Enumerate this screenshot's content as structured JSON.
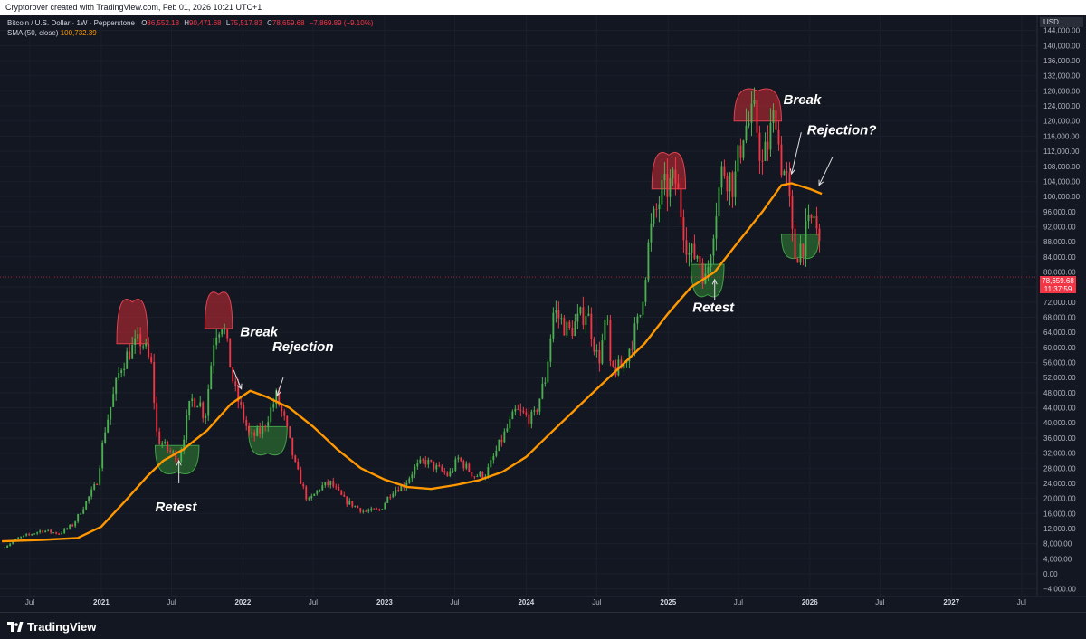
{
  "header": {
    "attribution": "Cryptorover created with TradingView.com, Feb 01, 2026 10:21 UTC+1"
  },
  "legend": {
    "symbol": "Bitcoin / U.S. Dollar · 1W · Pepperstone",
    "open_label": "O",
    "open": "86,552.18",
    "high_label": "H",
    "high": "90,471.68",
    "low_label": "L",
    "low": "75,517.83",
    "close_label": "C",
    "close": "78,659.68",
    "change": "−7,869.89 (−9.10%)",
    "sma_label": "SMA (50, close)",
    "sma_value": "100,732.39"
  },
  "price_axis": {
    "currency": "USD",
    "last_price": "78,659.68",
    "countdown": "11:37:59"
  },
  "footer": {
    "brand": "TradingView"
  },
  "colors": {
    "background": "#131722",
    "up": "#4caf50",
    "down": "#f23645",
    "sma": "#ff9800",
    "top_zone": "#b22833",
    "bottom_zone": "#2e7d32"
  },
  "chart_data": {
    "type": "candlestick",
    "x_ticks": [
      "Jul",
      "2021",
      "Jul",
      "2022",
      "Jul",
      "2023",
      "Jul",
      "2024",
      "Jul",
      "2025",
      "Jul",
      "2026",
      "Jul",
      "2027",
      "Jul"
    ],
    "x_tick_dates": [
      "2020-07-01",
      "2021-01-01",
      "2021-07-01",
      "2022-01-01",
      "2022-07-01",
      "2023-01-01",
      "2023-07-01",
      "2024-01-01",
      "2024-07-01",
      "2025-01-01",
      "2025-07-01",
      "2026-01-01",
      "2026-07-01",
      "2027-01-01",
      "2027-07-01"
    ],
    "y_ticks": [
      144000,
      140000,
      136000,
      132000,
      128000,
      124000,
      120000,
      116000,
      112000,
      108000,
      104000,
      100000,
      96000,
      92000,
      88000,
      84000,
      80000,
      76000,
      72000,
      68000,
      64000,
      60000,
      56000,
      52000,
      48000,
      44000,
      40000,
      36000,
      32000,
      28000,
      24000,
      20000,
      16000,
      12000,
      8000,
      4000,
      0,
      -4000
    ],
    "y_tick_labels": [
      "144,000.00",
      "140,000.00",
      "136,000.00",
      "132,000.00",
      "128,000.00",
      "124,000.00",
      "120,000.00",
      "116,000.00",
      "112,000.00",
      "108,000.00",
      "104,000.00",
      "100,000.00",
      "96,000.00",
      "92,000.00",
      "88,000.00",
      "84,000.00",
      "80,000.00",
      "76,000.00",
      "72,000.00",
      "68,000.00",
      "64,000.00",
      "60,000.00",
      "56,000.00",
      "52,000.00",
      "48,000.00",
      "44,000.00",
      "40,000.00",
      "36,000.00",
      "32,000.00",
      "28,000.00",
      "24,000.00",
      "20,000.00",
      "16,000.00",
      "12,000.00",
      "8,000.00",
      "4,000.00",
      "0.00",
      "−4,000.00"
    ],
    "ylim": [
      -6000,
      148000
    ],
    "x_range": [
      "2020-04-15",
      "2027-08-10"
    ],
    "price_keypoints": [
      [
        "2020-04-20",
        6800
      ],
      [
        "2020-06-01",
        9400
      ],
      [
        "2020-08-01",
        11500
      ],
      [
        "2020-09-15",
        10700
      ],
      [
        "2020-10-20",
        13000
      ],
      [
        "2020-11-20",
        18500
      ],
      [
        "2020-12-20",
        24000
      ],
      [
        "2021-01-10",
        38000
      ],
      [
        "2021-02-20",
        55000
      ],
      [
        "2021-03-15",
        59000
      ],
      [
        "2021-04-15",
        62000
      ],
      [
        "2021-05-10",
        55000
      ],
      [
        "2021-05-25",
        36000
      ],
      [
        "2021-06-20",
        33000
      ],
      [
        "2021-07-20",
        30500
      ],
      [
        "2021-08-20",
        46000
      ],
      [
        "2021-09-10",
        46000
      ],
      [
        "2021-09-25",
        41000
      ],
      [
        "2021-10-20",
        64000
      ],
      [
        "2021-11-10",
        67000
      ],
      [
        "2021-12-10",
        49000
      ],
      [
        "2022-01-20",
        36000
      ],
      [
        "2022-02-20",
        38000
      ],
      [
        "2022-03-28",
        47000
      ],
      [
        "2022-04-20",
        40000
      ],
      [
        "2022-05-15",
        29000
      ],
      [
        "2022-06-18",
        19000
      ],
      [
        "2022-07-20",
        23000
      ],
      [
        "2022-08-15",
        24000
      ],
      [
        "2022-09-20",
        19500
      ],
      [
        "2022-11-10",
        16500
      ],
      [
        "2022-12-20",
        16800
      ],
      [
        "2023-01-20",
        22000
      ],
      [
        "2023-02-20",
        23500
      ],
      [
        "2023-03-20",
        28000
      ],
      [
        "2023-04-15",
        30000
      ],
      [
        "2023-06-15",
        26000
      ],
      [
        "2023-07-10",
        30500
      ],
      [
        "2023-08-20",
        26000
      ],
      [
        "2023-09-20",
        26500
      ],
      [
        "2023-10-25",
        34500
      ],
      [
        "2023-12-05",
        43000
      ],
      [
        "2024-01-20",
        41000
      ],
      [
        "2024-02-20",
        52000
      ],
      [
        "2024-03-12",
        70000
      ],
      [
        "2024-04-20",
        64000
      ],
      [
        "2024-06-05",
        70000
      ],
      [
        "2024-07-05",
        56000
      ],
      [
        "2024-07-28",
        68000
      ],
      [
        "2024-08-05",
        54000
      ],
      [
        "2024-09-05",
        54500
      ],
      [
        "2024-10-20",
        68000
      ],
      [
        "2024-11-15",
        90000
      ],
      [
        "2024-12-15",
        101000
      ],
      [
        "2025-01-20",
        104000
      ],
      [
        "2025-02-25",
        84000
      ],
      [
        "2025-03-20",
        85000
      ],
      [
        "2025-04-08",
        77000
      ],
      [
        "2025-05-01",
        95000
      ],
      [
        "2025-05-22",
        108000
      ],
      [
        "2025-06-20",
        103000
      ],
      [
        "2025-07-14",
        118000
      ],
      [
        "2025-08-14",
        121000
      ],
      [
        "2025-09-01",
        108000
      ],
      [
        "2025-10-06",
        123000
      ],
      [
        "2025-10-15",
        111000
      ],
      [
        "2025-11-05",
        103000
      ],
      [
        "2025-11-21",
        84000
      ],
      [
        "2025-12-15",
        88000
      ],
      [
        "2026-01-12",
        95000
      ],
      [
        "2026-01-26",
        86500
      ],
      [
        "2026-02-01",
        78659.68
      ]
    ],
    "sma_50": {
      "name": "SMA (50, close)",
      "points": [
        [
          "2020-04-20",
          8600
        ],
        [
          "2020-08-01",
          9000
        ],
        [
          "2020-11-01",
          9500
        ],
        [
          "2021-01-01",
          12500
        ],
        [
          "2021-03-01",
          19000
        ],
        [
          "2021-05-01",
          26000
        ],
        [
          "2021-06-10",
          30000
        ],
        [
          "2021-08-01",
          33000
        ],
        [
          "2021-10-01",
          38000
        ],
        [
          "2021-12-01",
          45000
        ],
        [
          "2022-01-20",
          48500
        ],
        [
          "2022-03-01",
          47000
        ],
        [
          "2022-05-01",
          44000
        ],
        [
          "2022-07-01",
          39000
        ],
        [
          "2022-09-01",
          33000
        ],
        [
          "2022-11-01",
          28000
        ],
        [
          "2023-01-01",
          25000
        ],
        [
          "2023-03-01",
          23000
        ],
        [
          "2023-05-01",
          22500
        ],
        [
          "2023-07-01",
          23500
        ],
        [
          "2023-09-01",
          24800
        ],
        [
          "2023-11-01",
          27000
        ],
        [
          "2024-01-01",
          31000
        ],
        [
          "2024-03-01",
          37000
        ],
        [
          "2024-05-01",
          43000
        ],
        [
          "2024-07-01",
          49000
        ],
        [
          "2024-09-01",
          55000
        ],
        [
          "2024-11-01",
          61000
        ],
        [
          "2025-01-01",
          69000
        ],
        [
          "2025-03-01",
          76000
        ],
        [
          "2025-05-01",
          80000
        ],
        [
          "2025-07-01",
          88000
        ],
        [
          "2025-09-01",
          96000
        ],
        [
          "2025-10-20",
          103000
        ],
        [
          "2025-11-15",
          103500
        ],
        [
          "2026-01-01",
          102000
        ],
        [
          "2026-02-01",
          100732.39
        ]
      ]
    },
    "top_zones": [
      {
        "start": "2021-02-10",
        "end": "2021-05-01",
        "base": 61000,
        "peak": 72000
      },
      {
        "start": "2021-09-25",
        "end": "2021-12-05",
        "base": 65000,
        "peak": 74000
      },
      {
        "start": "2024-11-20",
        "end": "2025-02-15",
        "base": 102000,
        "peak": 111000
      },
      {
        "start": "2025-06-20",
        "end": "2025-10-20",
        "base": 120000,
        "peak": 128000
      }
    ],
    "bottom_zones": [
      {
        "start": "2021-05-20",
        "end": "2021-09-10",
        "base": 34000,
        "trough": 27000
      },
      {
        "start": "2022-01-15",
        "end": "2022-04-25",
        "base": 39000,
        "trough": 32000
      },
      {
        "start": "2025-03-01",
        "end": "2025-05-25",
        "base": 82000,
        "trough": 74000
      },
      {
        "start": "2025-10-20",
        "end": "2026-01-25",
        "base": 90000,
        "trough": 84000
      }
    ],
    "annotations": [
      {
        "text": "Break",
        "date": "2021-12-25",
        "value": 63000,
        "arrow_from": [
          "2021-12-08",
          54000
        ],
        "arrow_to": [
          "2021-12-28",
          49000
        ]
      },
      {
        "text": "Rejection",
        "date": "2022-03-18",
        "value": 59000,
        "arrow_from": [
          "2022-04-15",
          52000
        ],
        "arrow_to": [
          "2022-03-30",
          47200
        ]
      },
      {
        "text": "Retest",
        "date": "2021-05-20",
        "value": 16500,
        "arrow_from": [
          "2021-07-20",
          24000
        ],
        "arrow_to": [
          "2021-07-20",
          30000
        ]
      },
      {
        "text": "Retest",
        "date": "2025-03-05",
        "value": 69500,
        "arrow_from": [
          "2025-05-01",
          72500
        ],
        "arrow_to": [
          "2025-05-01",
          78000
        ]
      },
      {
        "text": "Break",
        "date": "2025-10-25",
        "value": 124500,
        "arrow_from": [
          "2025-12-10",
          117000
        ],
        "arrow_to": [
          "2025-11-15",
          106000
        ]
      },
      {
        "text": "Rejection?",
        "date": "2025-12-25",
        "value": 116500,
        "arrow_from": [
          "2026-03-01",
          110500
        ],
        "arrow_to": [
          "2026-01-25",
          103000
        ]
      }
    ]
  }
}
